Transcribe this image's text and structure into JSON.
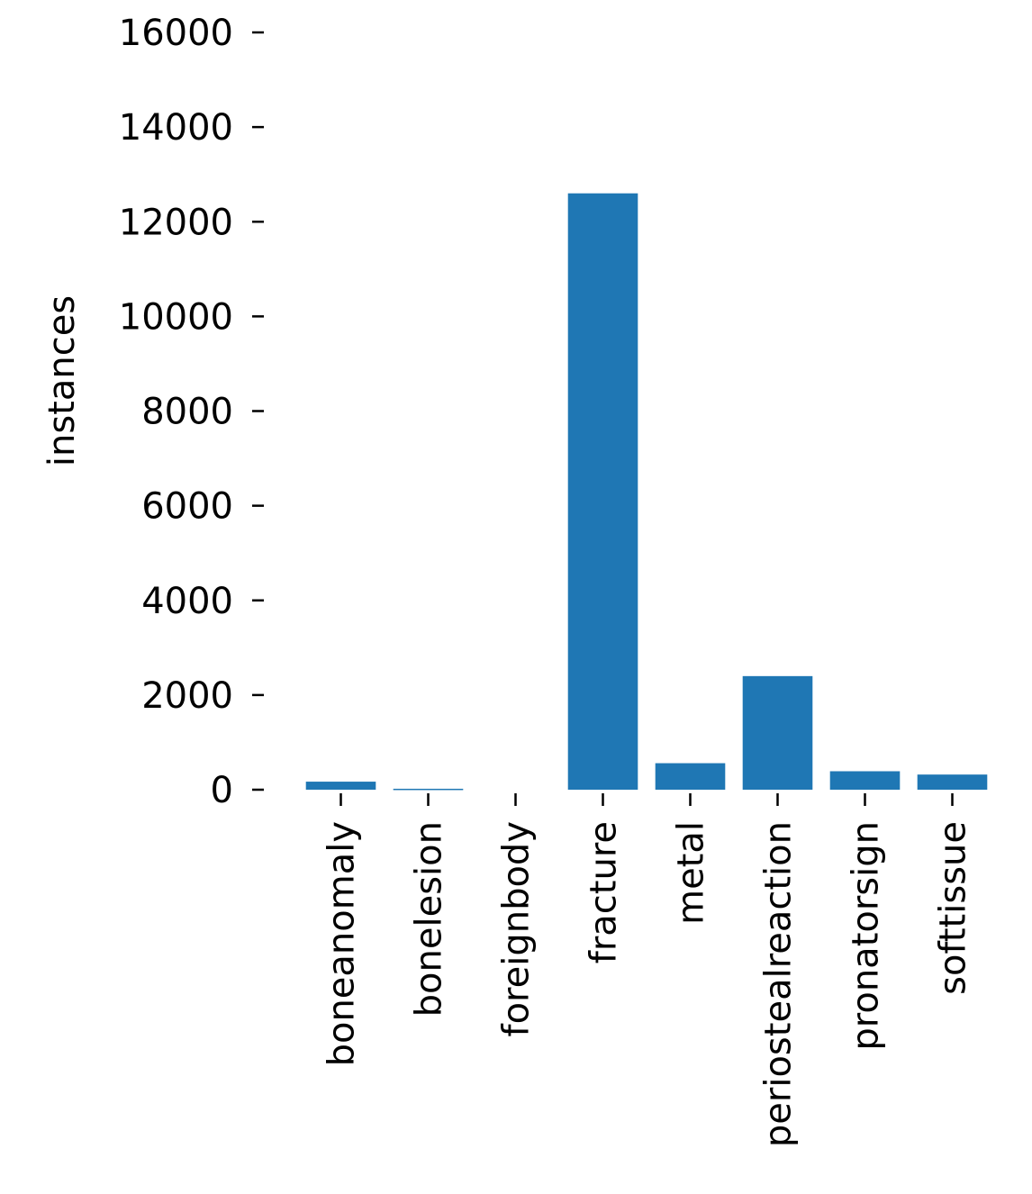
{
  "chart_data": {
    "type": "bar",
    "title": "",
    "xlabel": "",
    "ylabel": "instances",
    "categories": [
      "boneanomaly",
      "bonelesion",
      "foreignbody",
      "fracture",
      "metal",
      "periostealreaction",
      "pronatorsign",
      "softtissue"
    ],
    "values": [
      170,
      20,
      0,
      12600,
      560,
      2400,
      390,
      320
    ],
    "ylim": [
      0,
      16000
    ],
    "yticks": [
      0,
      2000,
      4000,
      6000,
      8000,
      10000,
      12000,
      14000,
      16000
    ],
    "ytick_labels": [
      "0",
      "2000",
      "4000",
      "6000",
      "8000",
      "10000",
      "12000",
      "14000",
      "16000"
    ],
    "grid": false,
    "bar_color": "#1f77b4"
  }
}
